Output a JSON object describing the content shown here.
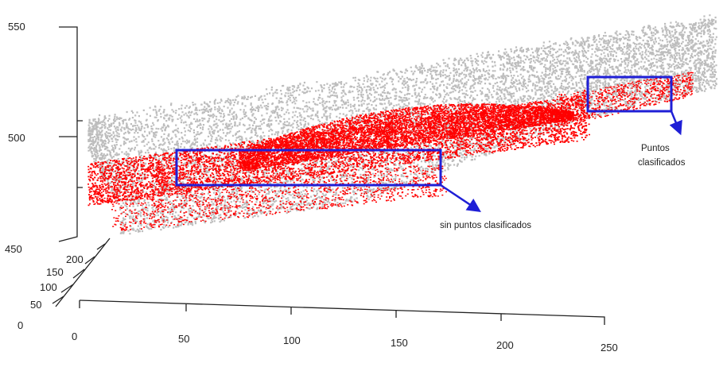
{
  "chart_data": {
    "type": "scatter",
    "dimensions": 3,
    "z_ticks": [
      "450",
      "500",
      "550"
    ],
    "y_ticks": [
      "50",
      "100",
      "150",
      "200"
    ],
    "y_origin_label": "0",
    "x_ticks": [
      "0",
      "50",
      "100",
      "150",
      "200",
      "250"
    ],
    "series": [
      {
        "color": "#bdbdbd"
      },
      {
        "color": "#ff0000"
      }
    ],
    "highlight_color": "#1f1fd6",
    "annotations": [
      {
        "id": "unclassified",
        "lines": [
          "sin puntos clasificados"
        ]
      },
      {
        "id": "classified",
        "lines": [
          "Puntos",
          "clasificados"
        ]
      }
    ]
  }
}
